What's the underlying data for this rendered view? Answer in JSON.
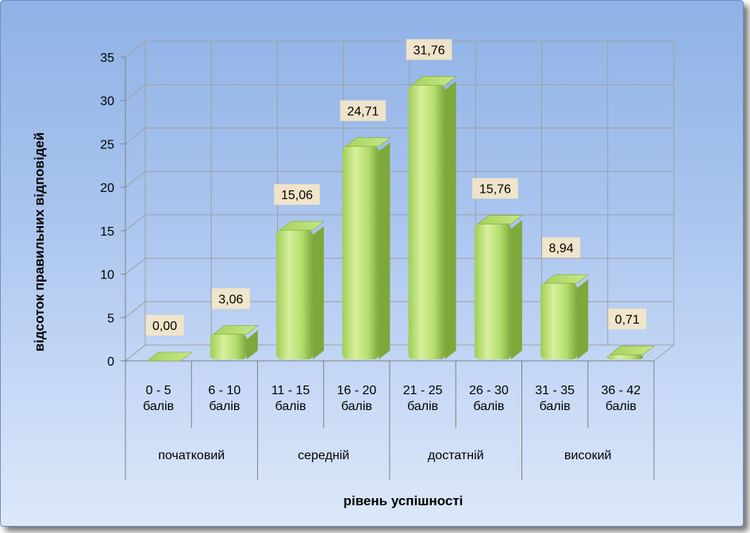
{
  "chart_data": {
    "type": "bar",
    "categories": [
      "0 - 5 балів",
      "6 - 10 балів",
      "11 - 15 балів",
      "16 - 20 балів",
      "21 - 25 балів",
      "26 - 30 балів",
      "31 - 35 балів",
      "36 - 42 балів"
    ],
    "category_lines": [
      [
        "0 - 5",
        "балів"
      ],
      [
        "6 - 10",
        "балів"
      ],
      [
        "11 - 15",
        "балів"
      ],
      [
        "16 - 20",
        "балів"
      ],
      [
        "21 - 25",
        "балів"
      ],
      [
        "26 - 30",
        "балів"
      ],
      [
        "31 - 35",
        "балів"
      ],
      [
        "36 - 42",
        "балів"
      ]
    ],
    "values": [
      0.0,
      3.06,
      15.06,
      24.71,
      31.76,
      15.76,
      8.94,
      0.71
    ],
    "value_labels": [
      "0,00",
      "3,06",
      "15,06",
      "24,71",
      "31,76",
      "15,76",
      "8,94",
      "0,71"
    ],
    "groups": [
      {
        "label": "початковий",
        "span": 2
      },
      {
        "label": "середній",
        "span": 2
      },
      {
        "label": "достатній",
        "span": 2
      },
      {
        "label": "високий",
        "span": 2
      }
    ],
    "title": "",
    "xlabel": "рівень успішності",
    "ylabel": "відсоток правильних відповідей",
    "ylim": [
      0,
      35
    ],
    "yticks": [
      0,
      5,
      10,
      15,
      20,
      25,
      30,
      35
    ],
    "grid": true,
    "legend": "none",
    "colors": {
      "bar_front": "#b5de6e",
      "bar_light": "#d8f09d",
      "bar_dark": "#7ea83a",
      "bar_top": "#a6d25c",
      "label_box": "#f3e6c7",
      "gridline": "#a0a0a0",
      "background_top": "#8fb2e6",
      "background_bottom": "#dde8fa"
    }
  }
}
